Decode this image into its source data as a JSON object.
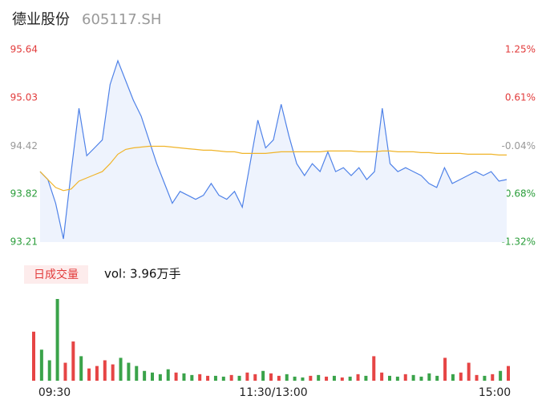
{
  "header": {
    "name": "德业股份",
    "code": "605117.SH"
  },
  "chart_data": [
    {
      "type": "line",
      "xlim": [
        0,
        240
      ],
      "x": [
        0,
        4,
        8,
        12,
        16,
        20,
        24,
        28,
        32,
        36,
        40,
        44,
        48,
        52,
        56,
        60,
        64,
        68,
        72,
        76,
        80,
        84,
        88,
        92,
        96,
        100,
        104,
        108,
        112,
        116,
        120,
        124,
        128,
        132,
        136,
        140,
        144,
        148,
        152,
        156,
        160,
        164,
        168,
        172,
        176,
        180,
        184,
        188,
        192,
        196,
        200,
        204,
        208,
        212,
        216,
        220,
        224,
        228,
        232,
        236,
        240
      ],
      "series": [
        {
          "color": "#4f82e8",
          "fill": "#eef3fd",
          "values": [
            94.1,
            94.0,
            93.7,
            93.25,
            94.1,
            94.9,
            94.3,
            94.4,
            94.5,
            95.2,
            95.5,
            95.25,
            95.0,
            94.8,
            94.5,
            94.2,
            93.95,
            93.7,
            93.85,
            93.8,
            93.75,
            93.8,
            93.95,
            93.8,
            93.75,
            93.85,
            93.65,
            94.2,
            94.75,
            94.4,
            94.5,
            94.95,
            94.55,
            94.2,
            94.05,
            94.2,
            94.1,
            94.35,
            94.1,
            94.15,
            94.05,
            94.15,
            94.0,
            94.1,
            94.9,
            94.2,
            94.1,
            94.15,
            94.1,
            94.05,
            93.95,
            93.9,
            94.15,
            93.95,
            94.0,
            94.05,
            94.1,
            94.05,
            94.1,
            93.98,
            94.0
          ]
        },
        {
          "color": "#f0b429",
          "values": [
            94.1,
            94.0,
            93.9,
            93.86,
            93.88,
            93.98,
            94.02,
            94.06,
            94.1,
            94.2,
            94.32,
            94.38,
            94.4,
            94.41,
            94.42,
            94.42,
            94.42,
            94.41,
            94.4,
            94.39,
            94.38,
            94.37,
            94.37,
            94.36,
            94.35,
            94.35,
            94.33,
            94.33,
            94.33,
            94.33,
            94.34,
            94.35,
            94.35,
            94.35,
            94.35,
            94.35,
            94.35,
            94.36,
            94.36,
            94.36,
            94.36,
            94.35,
            94.35,
            94.35,
            94.36,
            94.36,
            94.35,
            94.35,
            94.35,
            94.34,
            94.34,
            94.33,
            94.33,
            94.33,
            94.33,
            94.32,
            94.32,
            94.32,
            94.32,
            94.31,
            94.31
          ]
        }
      ],
      "ylim": [
        93.21,
        95.64
      ],
      "yticks": [
        95.64,
        95.03,
        94.42,
        93.82,
        93.21
      ],
      "ytick_colors": [
        "#e23b3b",
        "#e23b3b",
        "#999999",
        "#2a9d3a",
        "#2a9d3a"
      ],
      "y2lim": [
        -1.32,
        1.25
      ],
      "y2ticks": [
        {
          "value": 1.25,
          "label": "1.25%"
        },
        {
          "value": 0.61,
          "label": "0.61%"
        },
        {
          "value": -0.04,
          "label": "-0.04%"
        },
        {
          "value": -0.68,
          "label": "-0.68%"
        },
        {
          "value": -1.32,
          "label": "-1.32%"
        }
      ],
      "y2tick_colors": [
        "#e23b3b",
        "#e23b3b",
        "#999999",
        "#2a9d3a",
        "#2a9d3a"
      ]
    },
    {
      "type": "bar",
      "legend_label": "日成交量",
      "summary": "vol: 3.96万手",
      "xlim": [
        0,
        240
      ],
      "x": [
        0,
        4,
        8,
        12,
        16,
        20,
        24,
        28,
        32,
        36,
        40,
        44,
        48,
        52,
        56,
        60,
        64,
        68,
        72,
        76,
        80,
        84,
        88,
        92,
        96,
        100,
        104,
        108,
        112,
        116,
        120,
        124,
        128,
        132,
        136,
        140,
        144,
        148,
        152,
        156,
        160,
        164,
        168,
        172,
        176,
        180,
        184,
        188,
        192,
        196,
        200,
        204,
        208,
        212,
        216,
        220,
        224,
        228,
        232,
        236,
        240
      ],
      "values": [
        60,
        38,
        25,
        100,
        22,
        48,
        30,
        15,
        18,
        25,
        20,
        28,
        22,
        18,
        12,
        10,
        8,
        14,
        10,
        9,
        7,
        8,
        6,
        6,
        5,
        7,
        6,
        10,
        8,
        12,
        9,
        6,
        8,
        5,
        4,
        6,
        7,
        5,
        6,
        4,
        5,
        8,
        6,
        30,
        10,
        6,
        5,
        8,
        7,
        5,
        9,
        6,
        28,
        8,
        10,
        22,
        7,
        6,
        8,
        12,
        18
      ],
      "ylim": [
        0,
        100
      ],
      "up_color": "#e64545",
      "down_color": "#3aa34a",
      "xticks": [
        {
          "value": 0,
          "label": "09:30"
        },
        {
          "value": 120,
          "label": "11:30/13:00"
        },
        {
          "value": 240,
          "label": "15:00"
        }
      ]
    }
  ]
}
